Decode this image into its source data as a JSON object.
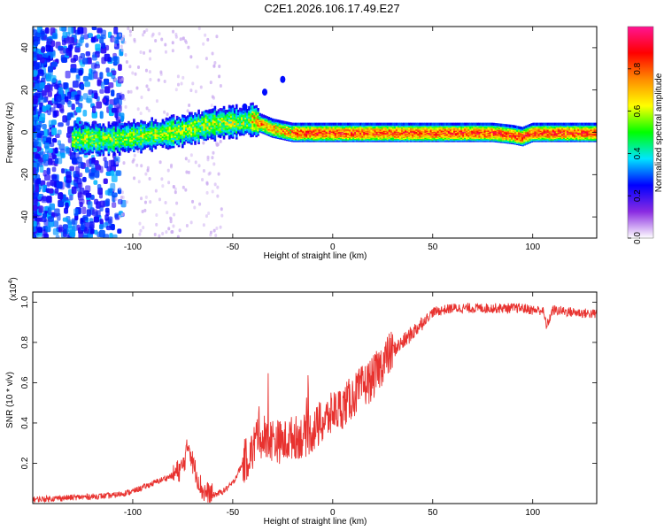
{
  "title": "C2E1.2026.106.17.49.E27",
  "chart_data": [
    {
      "type": "heatmap",
      "name": "spectrogram",
      "xlabel": "Height of straight line (km)",
      "ylabel": "Frequency (Hz)",
      "xlim": [
        -150,
        132
      ],
      "ylim": [
        -50,
        50
      ],
      "xticks": [
        -100,
        -50,
        0,
        50,
        100
      ],
      "yticks": [
        -40,
        -20,
        0,
        20,
        40
      ],
      "ridge": {
        "x": [
          -150,
          -130,
          -110,
          -100,
          -90,
          -80,
          -70,
          -60,
          -50,
          -45,
          -40,
          -35,
          -30,
          -25,
          -20,
          -10,
          0,
          20,
          40,
          60,
          80,
          90,
          95,
          100,
          110,
          132
        ],
        "freq": [
          -3,
          -3,
          -3,
          -2,
          -1,
          0,
          2,
          4,
          5,
          5,
          6,
          4,
          2,
          1,
          0,
          0,
          0,
          0,
          0,
          0,
          0,
          -1,
          -2,
          0,
          0,
          0
        ]
      },
      "colorbar": {
        "label": "Normalized spectral amplitude",
        "range": [
          0,
          1
        ],
        "ticks": [
          0.0,
          0.2,
          0.4,
          0.6,
          0.8
        ],
        "tick_labels": [
          "0.0",
          "0.2",
          "0.4",
          "0.6",
          "0.8"
        ],
        "colors": [
          "#ffffff",
          "#8a2be2",
          "#0000ff",
          "#00e5ff",
          "#00ff00",
          "#ffff00",
          "#ff8c00",
          "#ff0000",
          "#ff1493"
        ]
      }
    },
    {
      "type": "line",
      "name": "snr",
      "xlabel": "Height of straight line (km)",
      "ylabel": "SNR (10 * v/v)",
      "scale_label": "(x10",
      "scale_exponent": "4",
      "scale_suffix": ")",
      "xlim": [
        -150,
        132
      ],
      "ylim": [
        0,
        1.05
      ],
      "xticks": [
        -100,
        -50,
        0,
        50,
        100
      ],
      "yticks": [
        0.2,
        0.4,
        0.6,
        0.8,
        1.0
      ],
      "ytick_labels": [
        "0.2",
        "0.4",
        "0.6",
        "0.8",
        "1.0"
      ],
      "color": "#e8322f",
      "x": [
        -150,
        -130,
        -110,
        -100,
        -90,
        -80,
        -75,
        -72,
        -70,
        -65,
        -60,
        -55,
        -50,
        -45,
        -40,
        -37,
        -35,
        -30,
        -25,
        -20,
        -15,
        -10,
        -5,
        0,
        5,
        10,
        15,
        20,
        25,
        30,
        35,
        40,
        45,
        50,
        60,
        70,
        80,
        90,
        95,
        100,
        105,
        107,
        110,
        120,
        132
      ],
      "y": [
        0.02,
        0.03,
        0.04,
        0.06,
        0.1,
        0.14,
        0.18,
        0.3,
        0.2,
        0.06,
        0.04,
        0.06,
        0.1,
        0.2,
        0.26,
        0.38,
        0.3,
        0.32,
        0.3,
        0.33,
        0.33,
        0.36,
        0.4,
        0.45,
        0.48,
        0.53,
        0.58,
        0.62,
        0.7,
        0.76,
        0.8,
        0.85,
        0.9,
        0.95,
        0.97,
        0.97,
        0.97,
        0.97,
        0.97,
        0.96,
        0.96,
        0.88,
        0.96,
        0.95,
        0.94
      ]
    }
  ]
}
